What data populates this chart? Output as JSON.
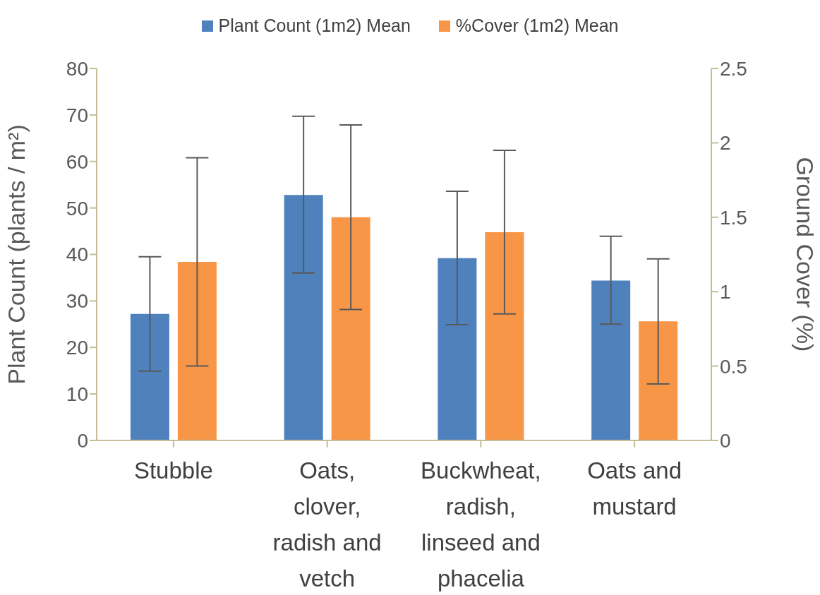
{
  "chart_data": {
    "type": "bar",
    "categories": [
      "Stubble",
      "Oats, clover, radish and vetch",
      "Buckwheat, radish, linseed and phacelia",
      "Oats and mustard"
    ],
    "series": [
      {
        "name": "Plant Count (1m2) Mean",
        "color": "#4f81bd",
        "values": [
          27.2,
          52.8,
          39.2,
          34.4
        ],
        "errors": [
          [
            14.9,
            39.5
          ],
          [
            36.0,
            69.7
          ],
          [
            24.9,
            53.6
          ],
          [
            25.0,
            43.9
          ]
        ]
      },
      {
        "name": "%Cover (1m2) Mean",
        "color": "#f79646",
        "axis": "y2",
        "values": [
          1.2,
          1.5,
          1.4,
          0.8
        ],
        "errors": [
          [
            0.5,
            1.9
          ],
          [
            0.88,
            2.12
          ],
          [
            0.85,
            1.95
          ],
          [
            0.38,
            1.22
          ]
        ]
      }
    ],
    "ylabel": "Plant Count (plants / m²)",
    "y2label": "Ground Cover (%)",
    "ylim": [
      0,
      80
    ],
    "yticks": [
      0,
      10,
      20,
      30,
      40,
      50,
      60,
      70,
      80
    ],
    "y2lim": [
      0,
      2.5
    ],
    "y2ticks": [
      0,
      0.5,
      1,
      1.5,
      2,
      2.5
    ],
    "grid": false,
    "legend": "top"
  }
}
